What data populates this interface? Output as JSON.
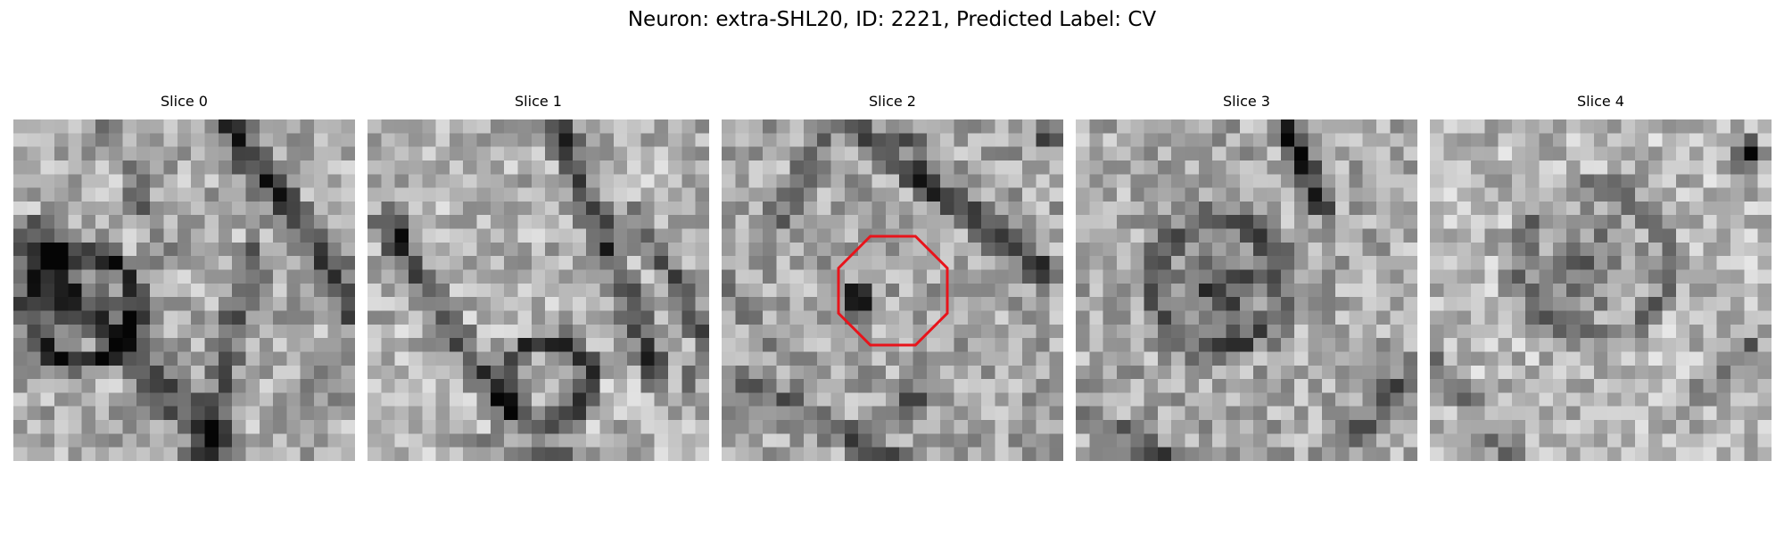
{
  "figure": {
    "suptitle": "Neuron: extra-SHL20, ID: 2221, Predicted Label: CV",
    "colormap": "gray",
    "marker_color": "#e8141b"
  },
  "panels": [
    {
      "title": "Slice 0",
      "image": "grayscale-em-slice-0"
    },
    {
      "title": "Slice 1",
      "image": "grayscale-em-slice-1"
    },
    {
      "title": "Slice 2",
      "image": "grayscale-em-slice-2",
      "marker": "red-octagon"
    },
    {
      "title": "Slice 3",
      "image": "grayscale-em-slice-3"
    },
    {
      "title": "Slice 4",
      "image": "grayscale-em-slice-4"
    }
  ]
}
